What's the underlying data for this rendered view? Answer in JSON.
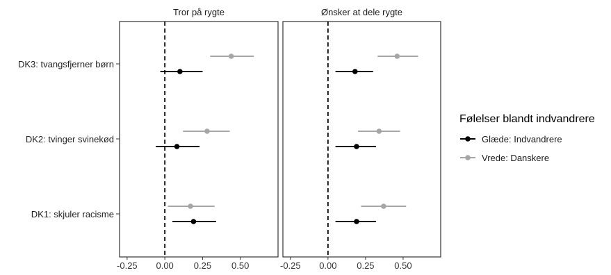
{
  "chart_data": {
    "type": "forest",
    "x_ticks": [
      -0.25,
      0.0,
      0.25,
      0.5
    ],
    "x_tick_labels": [
      "-0.25",
      "0.00",
      "0.25",
      "0.50"
    ],
    "xlim": [
      -0.3,
      0.75
    ],
    "reference_line": 0,
    "y_categories": [
      "DK3: tvangsfjerner børn",
      "DK2: tvinger svinekød",
      "DK1: skjuler racisme"
    ],
    "legend": {
      "title": "Følelser blandt indvandrere",
      "position": "right",
      "entries": [
        {
          "label": "Glæde: Indvandrere",
          "color": "#000000"
        },
        {
          "label": "Vrede: Danskere",
          "color": "#a6a6a6"
        }
      ]
    },
    "panels": [
      {
        "title": "Tror på rygte",
        "series": [
          {
            "name": "Glæde: Indvandrere",
            "color": "#000000",
            "points": [
              {
                "category": "DK3: tvangsfjerner børn",
                "estimate": 0.1,
                "low": -0.03,
                "high": 0.25
              },
              {
                "category": "DK2: tvinger svinekød",
                "estimate": 0.08,
                "low": -0.06,
                "high": 0.23
              },
              {
                "category": "DK1: skjuler racisme",
                "estimate": 0.19,
                "low": 0.05,
                "high": 0.34
              }
            ]
          },
          {
            "name": "Vrede: Danskere",
            "color": "#a6a6a6",
            "points": [
              {
                "category": "DK3: tvangsfjerner børn",
                "estimate": 0.44,
                "low": 0.3,
                "high": 0.59
              },
              {
                "category": "DK2: tvinger svinekød",
                "estimate": 0.28,
                "low": 0.12,
                "high": 0.43
              },
              {
                "category": "DK1: skjuler racisme",
                "estimate": 0.17,
                "low": 0.02,
                "high": 0.33
              }
            ]
          }
        ]
      },
      {
        "title": "Ønsker at dele rygte",
        "series": [
          {
            "name": "Glæde: Indvandrere",
            "color": "#000000",
            "points": [
              {
                "category": "DK3: tvangsfjerner børn",
                "estimate": 0.18,
                "low": 0.05,
                "high": 0.3
              },
              {
                "category": "DK2: tvinger svinekød",
                "estimate": 0.19,
                "low": 0.05,
                "high": 0.32
              },
              {
                "category": "DK1: skjuler racisme",
                "estimate": 0.19,
                "low": 0.05,
                "high": 0.32
              }
            ]
          },
          {
            "name": "Vrede: Danskere",
            "color": "#a6a6a6",
            "points": [
              {
                "category": "DK3: tvangsfjerner børn",
                "estimate": 0.46,
                "low": 0.33,
                "high": 0.6
              },
              {
                "category": "DK2: tvinger svinekød",
                "estimate": 0.34,
                "low": 0.2,
                "high": 0.48
              },
              {
                "category": "DK1: skjuler racisme",
                "estimate": 0.37,
                "low": 0.22,
                "high": 0.52
              }
            ]
          }
        ]
      }
    ]
  }
}
